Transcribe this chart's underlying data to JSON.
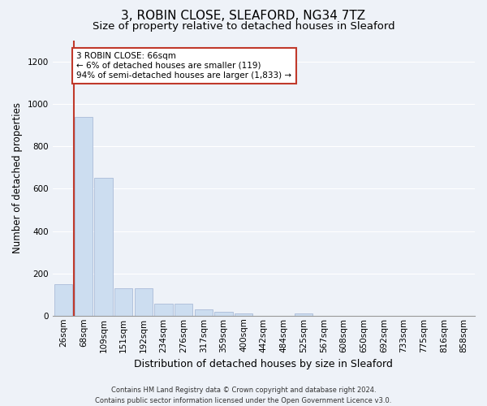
{
  "title": "3, ROBIN CLOSE, SLEAFORD, NG34 7TZ",
  "subtitle": "Size of property relative to detached houses in Sleaford",
  "xlabel": "Distribution of detached houses by size in Sleaford",
  "ylabel": "Number of detached properties",
  "bar_labels": [
    "26sqm",
    "68sqm",
    "109sqm",
    "151sqm",
    "192sqm",
    "234sqm",
    "276sqm",
    "317sqm",
    "359sqm",
    "400sqm",
    "442sqm",
    "484sqm",
    "525sqm",
    "567sqm",
    "608sqm",
    "650sqm",
    "692sqm",
    "733sqm",
    "775sqm",
    "816sqm",
    "858sqm"
  ],
  "bar_values": [
    150,
    940,
    650,
    130,
    130,
    55,
    55,
    28,
    18,
    10,
    0,
    0,
    12,
    0,
    0,
    0,
    0,
    0,
    0,
    0,
    0
  ],
  "bar_color": "#ccddf0",
  "bar_edge_color": "#aabbd8",
  "vline_color": "#c0392b",
  "vline_x_bar_index": 1,
  "annotation_text": "3 ROBIN CLOSE: 66sqm\n← 6% of detached houses are smaller (119)\n94% of semi-detached houses are larger (1,833) →",
  "annotation_box_color": "#c0392b",
  "ylim": [
    0,
    1300
  ],
  "yticks": [
    0,
    200,
    400,
    600,
    800,
    1000,
    1200
  ],
  "footer_text": "Contains HM Land Registry data © Crown copyright and database right 2024.\nContains public sector information licensed under the Open Government Licence v3.0.",
  "bg_color": "#eef2f8",
  "grid_color": "#ffffff",
  "title_fontsize": 11,
  "subtitle_fontsize": 9.5,
  "xlabel_fontsize": 9,
  "ylabel_fontsize": 8.5,
  "tick_fontsize": 7.5,
  "footer_fontsize": 6,
  "annot_fontsize": 7.5
}
